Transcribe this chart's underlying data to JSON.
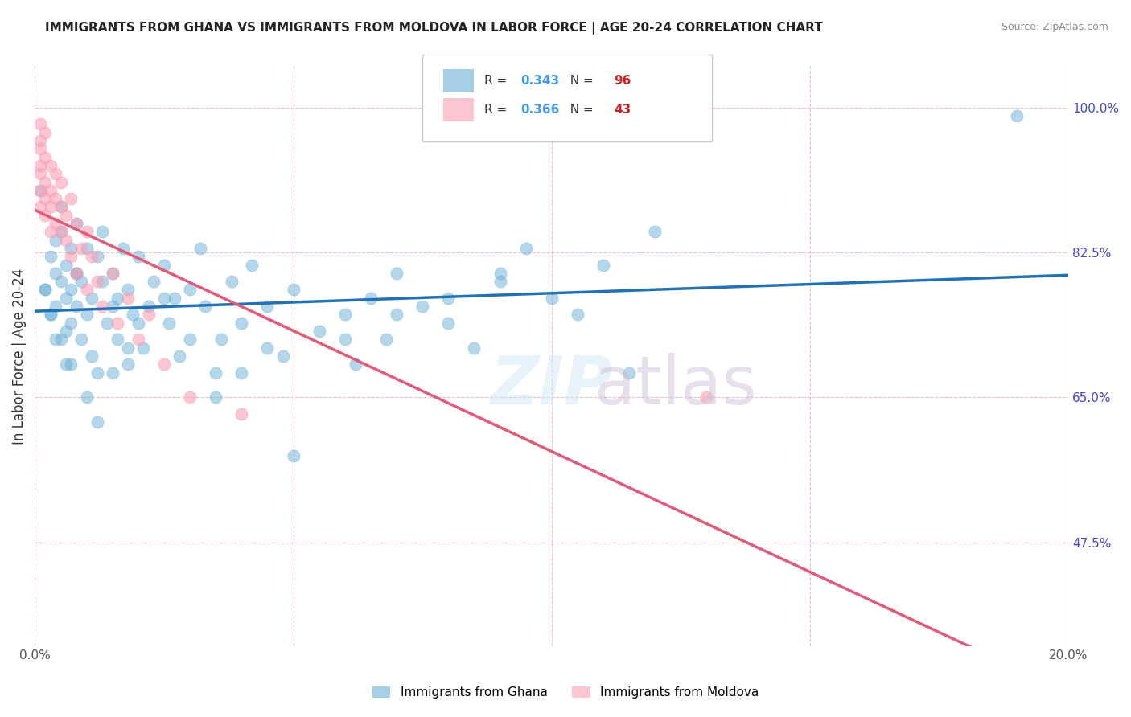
{
  "title": "IMMIGRANTS FROM GHANA VS IMMIGRANTS FROM MOLDOVA IN LABOR FORCE | AGE 20-24 CORRELATION CHART",
  "source": "Source: ZipAtlas.com",
  "xlabel": "",
  "ylabel": "In Labor Force | Age 20-24",
  "xlim": [
    0.0,
    0.2
  ],
  "ylim": [
    0.35,
    1.05
  ],
  "xticks": [
    0.0,
    0.05,
    0.1,
    0.15,
    0.2
  ],
  "xticklabels": [
    "0.0%",
    "",
    "",
    "",
    "20.0%"
  ],
  "yticks": [
    0.475,
    0.65,
    0.825,
    1.0
  ],
  "yticklabels": [
    "47.5%",
    "65.0%",
    "82.5%",
    "100.0%"
  ],
  "ghana_R": 0.343,
  "ghana_N": 96,
  "moldova_R": 0.366,
  "moldova_N": 43,
  "ghana_color": "#6baed6",
  "moldova_color": "#fa9fb5",
  "ghana_line_color": "#2171b5",
  "moldova_line_color": "#e05a7a",
  "watermark": "ZIPatlas",
  "ghana_scatter_x": [
    0.002,
    0.003,
    0.003,
    0.004,
    0.004,
    0.004,
    0.005,
    0.005,
    0.005,
    0.005,
    0.006,
    0.006,
    0.006,
    0.007,
    0.007,
    0.007,
    0.007,
    0.008,
    0.008,
    0.008,
    0.009,
    0.009,
    0.01,
    0.01,
    0.011,
    0.011,
    0.012,
    0.012,
    0.013,
    0.013,
    0.014,
    0.015,
    0.015,
    0.016,
    0.016,
    0.017,
    0.018,
    0.018,
    0.019,
    0.02,
    0.021,
    0.022,
    0.023,
    0.025,
    0.026,
    0.027,
    0.028,
    0.03,
    0.032,
    0.033,
    0.035,
    0.036,
    0.038,
    0.04,
    0.042,
    0.045,
    0.048,
    0.05,
    0.055,
    0.06,
    0.062,
    0.065,
    0.068,
    0.07,
    0.075,
    0.08,
    0.085,
    0.09,
    0.095,
    0.1,
    0.105,
    0.11,
    0.115,
    0.12,
    0.001,
    0.002,
    0.003,
    0.004,
    0.006,
    0.008,
    0.01,
    0.012,
    0.015,
    0.018,
    0.02,
    0.025,
    0.03,
    0.035,
    0.04,
    0.045,
    0.05,
    0.06,
    0.07,
    0.08,
    0.09,
    0.19
  ],
  "ghana_scatter_y": [
    0.78,
    0.82,
    0.75,
    0.8,
    0.76,
    0.84,
    0.79,
    0.72,
    0.85,
    0.88,
    0.77,
    0.73,
    0.81,
    0.74,
    0.83,
    0.78,
    0.69,
    0.8,
    0.76,
    0.86,
    0.72,
    0.79,
    0.75,
    0.83,
    0.7,
    0.77,
    0.82,
    0.68,
    0.79,
    0.85,
    0.74,
    0.76,
    0.8,
    0.72,
    0.77,
    0.83,
    0.69,
    0.78,
    0.75,
    0.82,
    0.71,
    0.76,
    0.79,
    0.81,
    0.74,
    0.77,
    0.7,
    0.78,
    0.83,
    0.76,
    0.68,
    0.72,
    0.79,
    0.74,
    0.81,
    0.76,
    0.7,
    0.78,
    0.73,
    0.75,
    0.69,
    0.77,
    0.72,
    0.8,
    0.76,
    0.74,
    0.71,
    0.79,
    0.83,
    0.77,
    0.75,
    0.81,
    0.68,
    0.85,
    0.9,
    0.78,
    0.75,
    0.72,
    0.69,
    0.8,
    0.65,
    0.62,
    0.68,
    0.71,
    0.74,
    0.77,
    0.72,
    0.65,
    0.68,
    0.71,
    0.58,
    0.72,
    0.75,
    0.77,
    0.8,
    0.99
  ],
  "moldova_scatter_x": [
    0.001,
    0.001,
    0.001,
    0.001,
    0.001,
    0.001,
    0.001,
    0.002,
    0.002,
    0.002,
    0.002,
    0.002,
    0.003,
    0.003,
    0.003,
    0.003,
    0.004,
    0.004,
    0.004,
    0.005,
    0.005,
    0.005,
    0.006,
    0.006,
    0.007,
    0.007,
    0.008,
    0.008,
    0.009,
    0.01,
    0.01,
    0.011,
    0.012,
    0.013,
    0.015,
    0.016,
    0.018,
    0.02,
    0.022,
    0.025,
    0.03,
    0.04,
    0.13
  ],
  "moldova_scatter_y": [
    0.98,
    0.96,
    0.95,
    0.93,
    0.92,
    0.9,
    0.88,
    0.97,
    0.94,
    0.91,
    0.89,
    0.87,
    0.93,
    0.9,
    0.88,
    0.85,
    0.92,
    0.89,
    0.86,
    0.91,
    0.88,
    0.85,
    0.87,
    0.84,
    0.89,
    0.82,
    0.86,
    0.8,
    0.83,
    0.85,
    0.78,
    0.82,
    0.79,
    0.76,
    0.8,
    0.74,
    0.77,
    0.72,
    0.75,
    0.69,
    0.65,
    0.63,
    0.65
  ]
}
